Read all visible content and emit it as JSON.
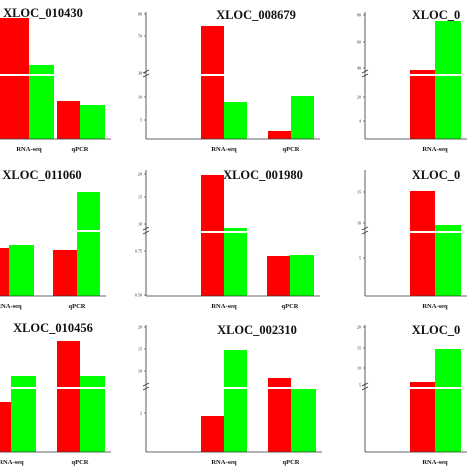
{
  "colors": {
    "rna_seq_bar": "#ff0000",
    "qpcr_bar": "#00ff00",
    "axis": "#333333"
  },
  "chart_data": [
    {
      "type": "bar",
      "title": "XLOC_010430",
      "categories": [
        "RNA-seq",
        "qPCR"
      ],
      "series": [
        {
          "values": [
            32,
            2.9
          ]
        },
        {
          "values": [
            19,
            2.6
          ]
        }
      ],
      "yticks": [],
      "axis_break": true,
      "grid": false
    },
    {
      "type": "bar",
      "title": "XLOC_008679",
      "categories": [
        "RNA-seq",
        "qPCR"
      ],
      "series": [
        {
          "values": [
            74,
            1.2
          ]
        },
        {
          "values": [
            8.5,
            10.2
          ]
        }
      ],
      "yticks": [
        "80",
        "70",
        "30",
        "10",
        "5"
      ],
      "axis_break": true,
      "grid": false
    },
    {
      "type": "bar",
      "title": "XLOC_0",
      "categories": [
        "RNA-seq"
      ],
      "series": [
        {
          "values": [
            14
          ]
        },
        {
          "values": [
            71
          ]
        }
      ],
      "yticks": [
        "80",
        "60",
        "40",
        "20",
        "4",
        "2"
      ],
      "axis_break": true,
      "grid": false
    },
    {
      "type": "bar",
      "title": "XLOC_011060",
      "categories": [
        "RNA-seq",
        "qPCR"
      ],
      "series": [
        {
          "values": [
            0.75,
            0.73
          ]
        },
        {
          "values": [
            0.8,
            1.5
          ]
        }
      ],
      "yticks": [],
      "axis_break": true,
      "grid": false
    },
    {
      "type": "bar",
      "title": "XLOC_001980",
      "categories": [
        "RNA-seq",
        "qPCR"
      ],
      "series": [
        {
          "values": [
            19,
            0.7
          ]
        },
        {
          "values": [
            3.5,
            0.71
          ]
        }
      ],
      "yticks": [
        "20",
        "15",
        "10",
        "0.75",
        "0.50"
      ],
      "axis_break": true,
      "grid": false
    },
    {
      "type": "bar",
      "title": "XLOC_0",
      "categories": [
        "RNA-seq"
      ],
      "series": [
        {
          "values": [
            10
          ]
        },
        {
          "values": [
            4
          ]
        }
      ],
      "yticks": [
        "15",
        "10",
        "5"
      ],
      "axis_break": true,
      "grid": false
    },
    {
      "type": "bar",
      "title": "XLOC_010456",
      "categories": [
        "RNA-seq",
        "qPCR"
      ],
      "series": [
        {
          "values": [
            2.8,
            22
          ]
        },
        {
          "values": [
            8,
            8
          ]
        }
      ],
      "yticks": [],
      "axis_break": true,
      "grid": false
    },
    {
      "type": "bar",
      "title": "XLOC_002310",
      "categories": [
        "RNA-seq",
        "qPCR"
      ],
      "series": [
        {
          "values": [
            1.8,
            8.5
          ]
        },
        {
          "values": [
            14.5,
            6.5
          ]
        }
      ],
      "yticks": [
        "20",
        "15",
        "10",
        "2"
      ],
      "axis_break": true,
      "grid": false
    },
    {
      "type": "bar",
      "title": "XLOC_0",
      "categories": [
        "RNA-seq"
      ],
      "series": [
        {
          "values": [
            4.5
          ]
        },
        {
          "values": [
            13.5
          ]
        }
      ],
      "yticks": [
        "20",
        "15",
        "10",
        "5"
      ],
      "axis_break": true,
      "grid": false
    }
  ]
}
